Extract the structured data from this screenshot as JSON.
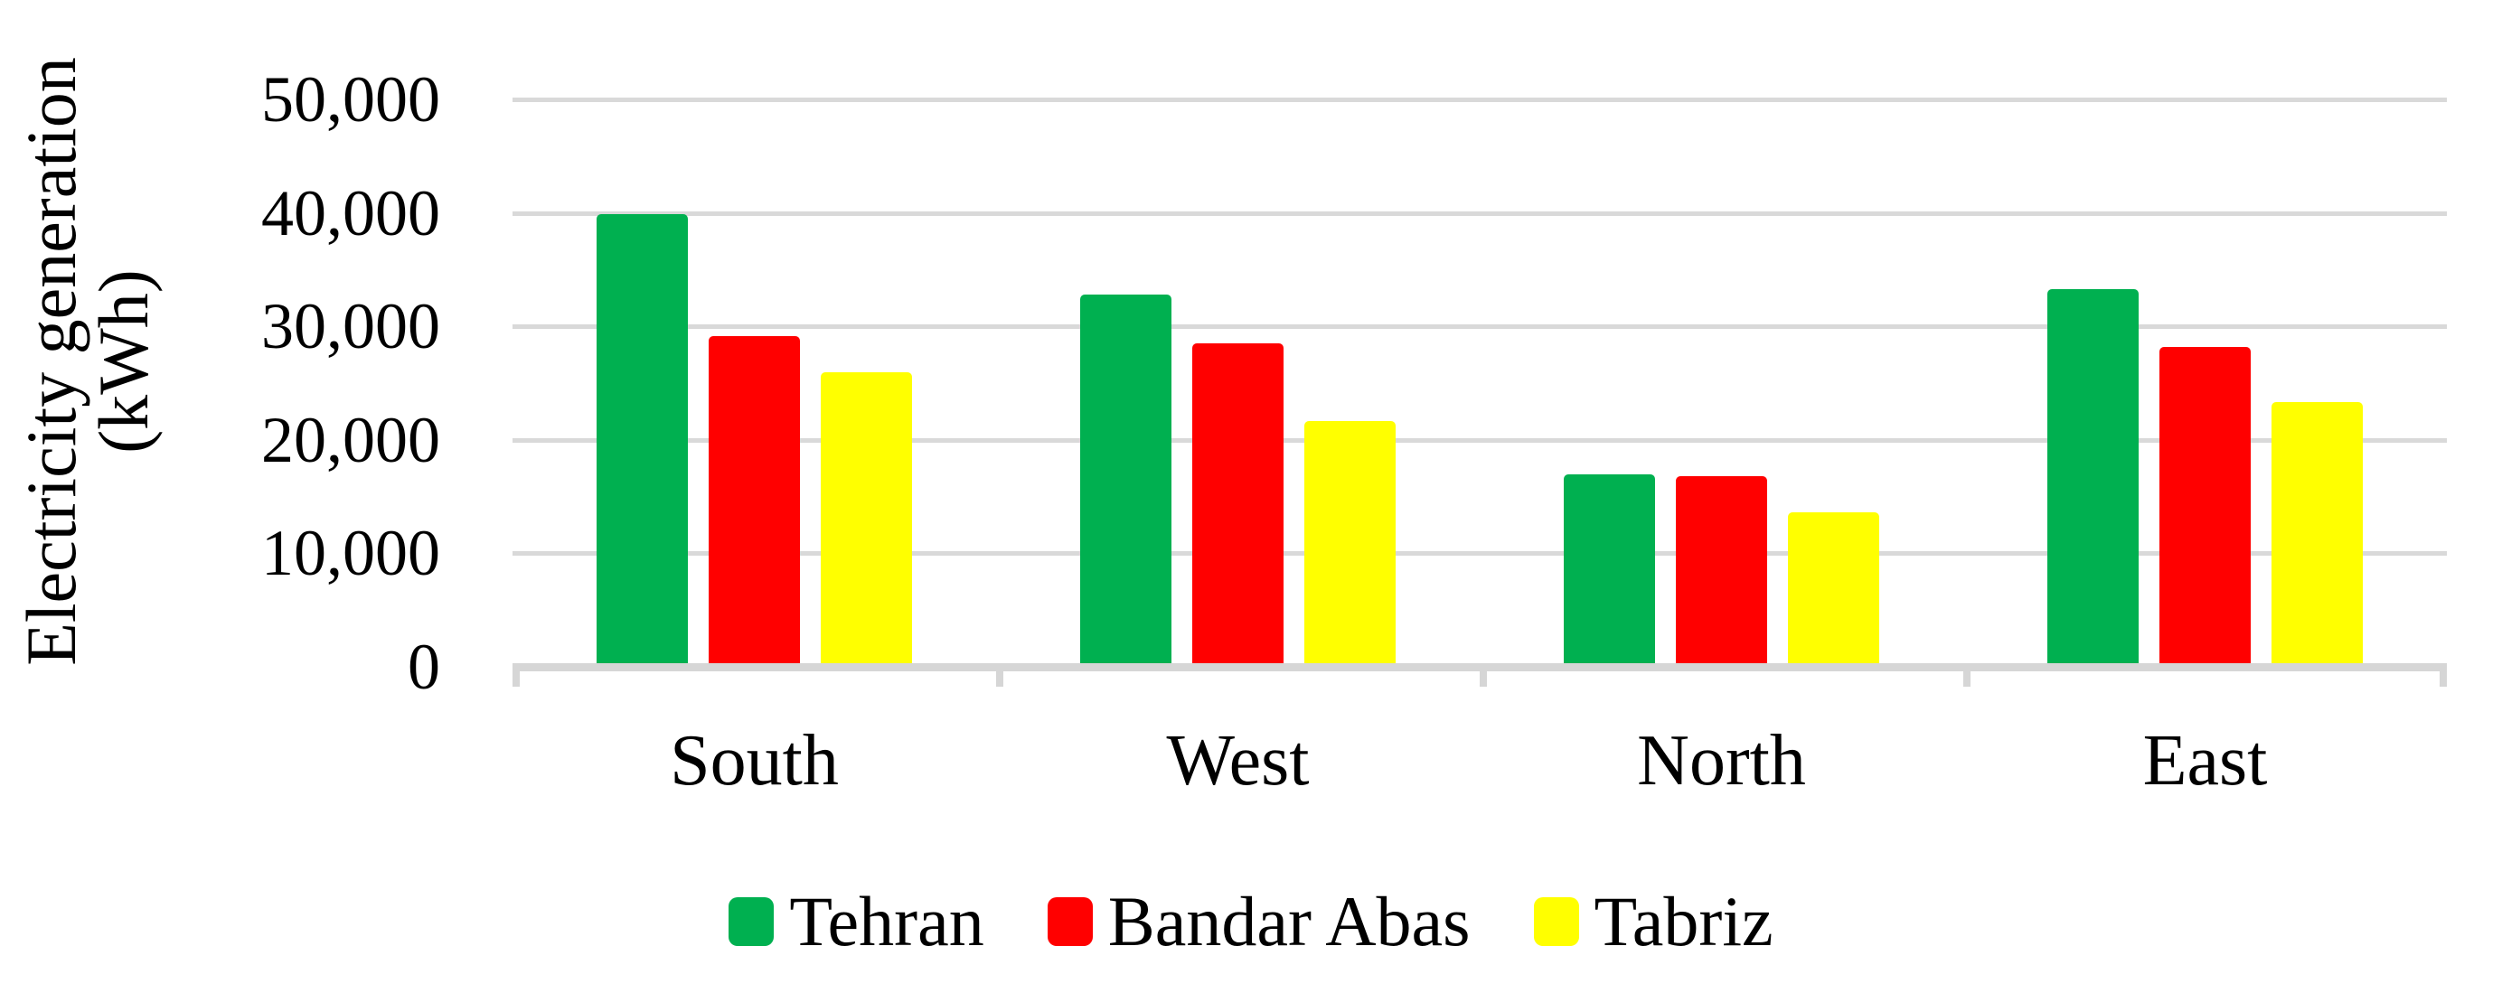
{
  "chart_data": {
    "type": "bar",
    "title": "",
    "xlabel": "",
    "ylabel": "Electricity generation (kWh)",
    "ylabel_lines": [
      "Electricity generation",
      "(kWh)"
    ],
    "categories": [
      "South",
      "West",
      "North",
      "East"
    ],
    "series": [
      {
        "name": "Tehran",
        "color": "#00B050",
        "values": [
          40000,
          32900,
          17000,
          33400
        ]
      },
      {
        "name": "Bandar Abas",
        "color": "#FF0000",
        "values": [
          29200,
          28600,
          16900,
          28300
        ]
      },
      {
        "name": "Tabriz",
        "color": "#FFFF00",
        "values": [
          26000,
          21700,
          13700,
          23400
        ]
      }
    ],
    "ylim": [
      0,
      50000
    ],
    "ytick_values": [
      0,
      10000,
      20000,
      30000,
      40000,
      50000
    ],
    "ytick_labels": [
      "0",
      "10,000",
      "20,000",
      "30,000",
      "40,000",
      "50,000"
    ],
    "grid": true,
    "gridline_color": "#D9D9D9",
    "axis_color": "#D6D6D6",
    "legend_position": "bottom",
    "background_color": "#FFFFFF"
  }
}
